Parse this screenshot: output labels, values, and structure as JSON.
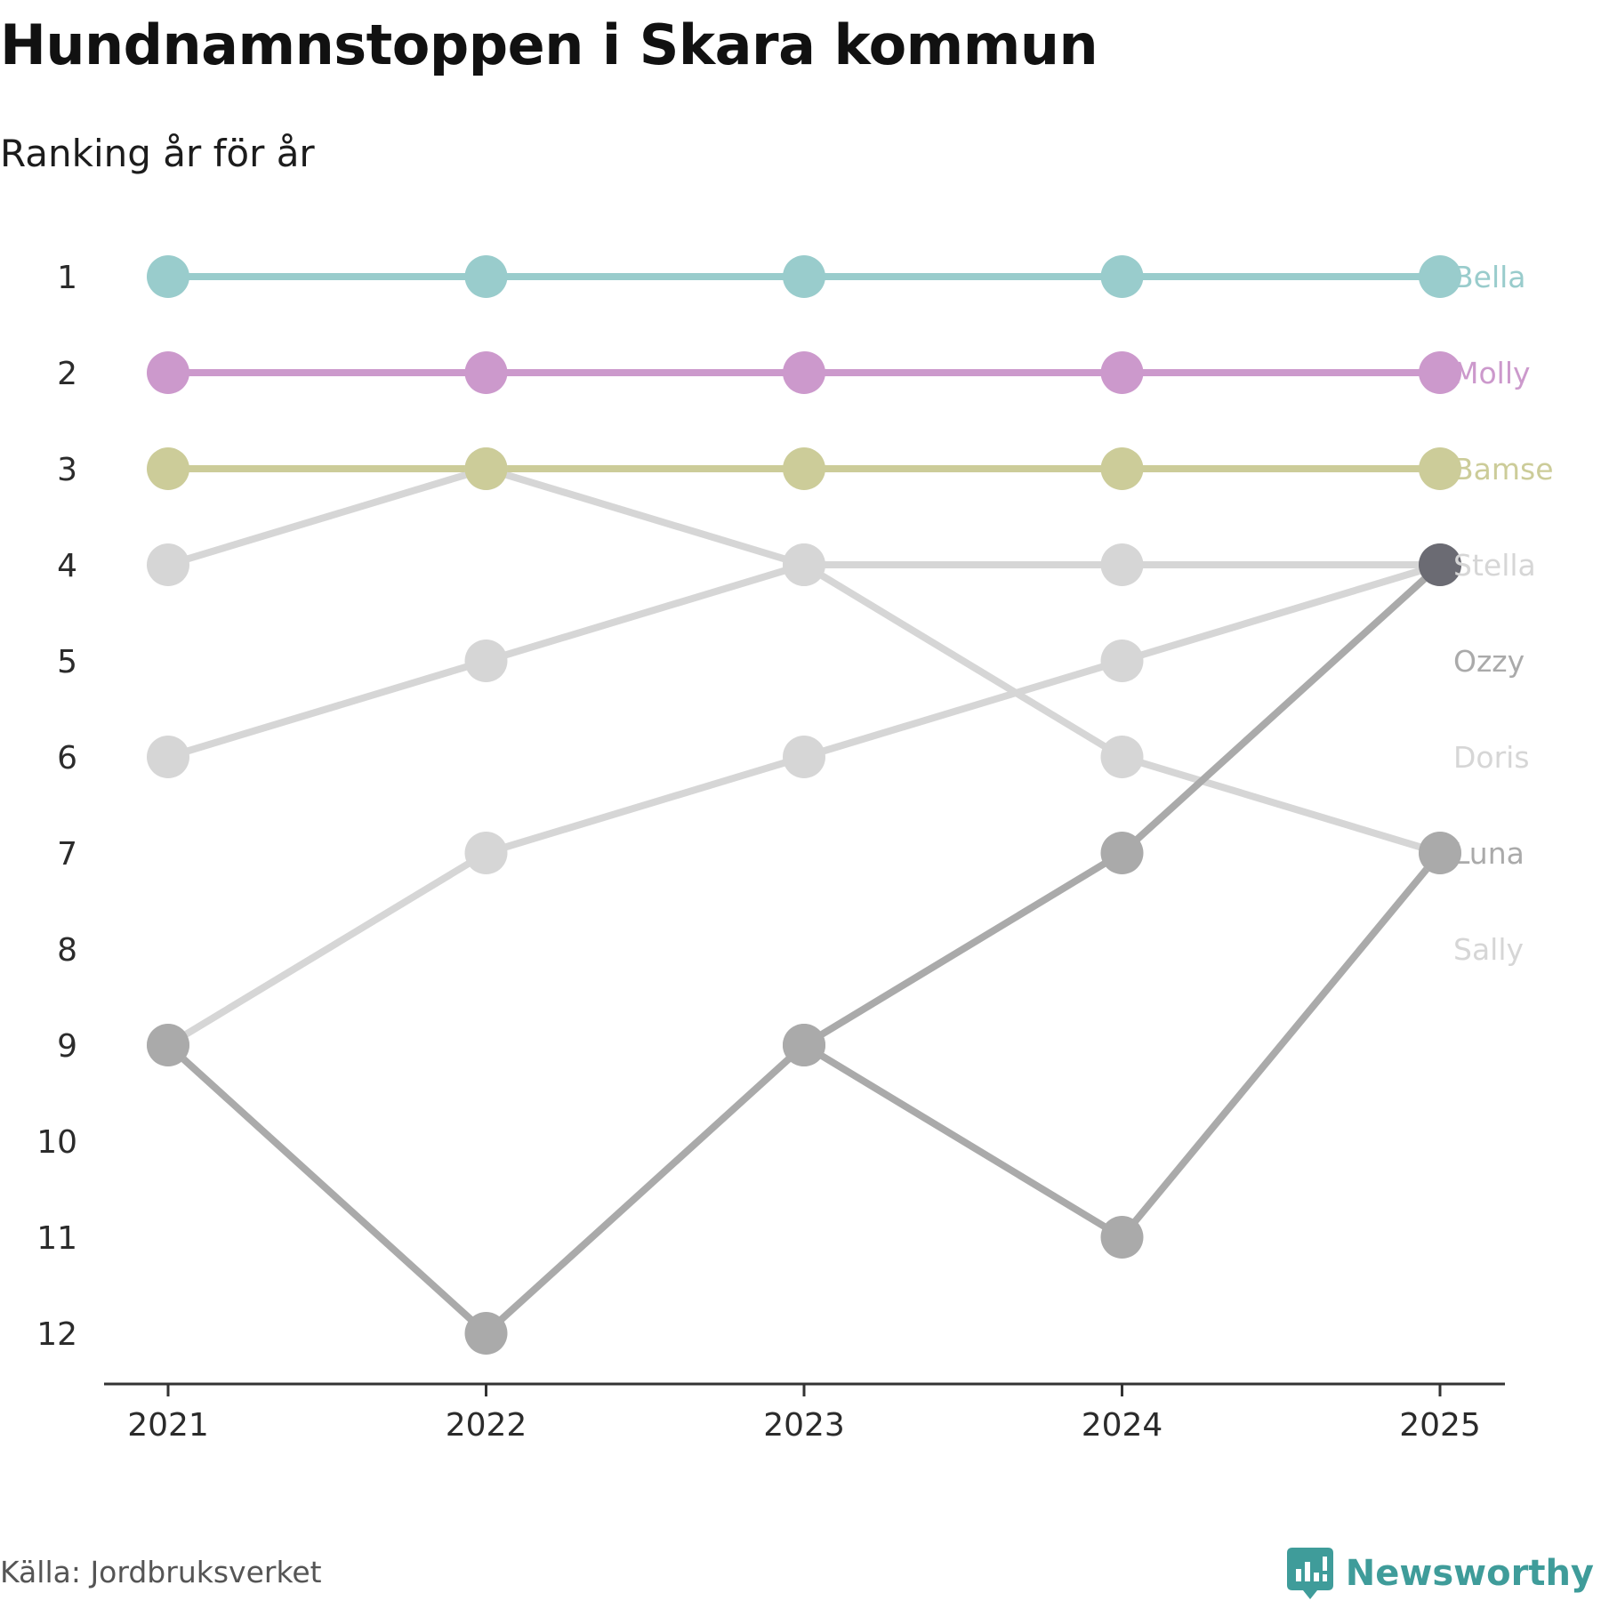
{
  "title": "Hundnamnstoppen i Skara kommun",
  "subtitle": "Ranking år för år",
  "source": "Källa: Jordbruksverket",
  "brand": {
    "name": "Newsworthy",
    "icon": "chart-bubble-icon",
    "color": "#3f9c9a"
  },
  "chart_data": {
    "type": "line",
    "title": "Hundnamnstoppen i Skara kommun",
    "subtitle": "Ranking år för år",
    "x": [
      2021,
      2022,
      2023,
      2024,
      2025
    ],
    "y_ticks": [
      1,
      2,
      3,
      4,
      5,
      6,
      7,
      8,
      9,
      10,
      11,
      12
    ],
    "ylim": [
      1,
      12
    ],
    "y_reversed": true,
    "xlabel": "",
    "ylabel": "",
    "series": [
      {
        "name": "Sally",
        "color": "#d6d6d6",
        "values": [
          9,
          7,
          6,
          5,
          4
        ]
      },
      {
        "name": "Doris",
        "color": "#d6d6d6",
        "values": [
          6,
          5,
          4,
          4,
          4
        ]
      },
      {
        "name": "Stella",
        "color": "#d6d6d6",
        "values": [
          4,
          3,
          4,
          6,
          7
        ]
      },
      {
        "name": "Luna",
        "color": "#aaaaaa",
        "values": [
          9,
          12,
          9,
          11,
          7
        ]
      },
      {
        "name": "Ozzy",
        "color": "#aaaaaa",
        "values": [
          null,
          null,
          9,
          7,
          4
        ]
      },
      {
        "name": "Bamse",
        "color": "#cccc99",
        "values": [
          3,
          3,
          3,
          3,
          3
        ]
      },
      {
        "name": "Molly",
        "color": "#cc99cc",
        "values": [
          2,
          2,
          2,
          2,
          2
        ]
      },
      {
        "name": "Bella",
        "color": "#99cccc",
        "values": [
          1,
          1,
          1,
          1,
          1
        ]
      }
    ],
    "end_labels": [
      {
        "name": "Bella",
        "rank": 1,
        "color": "#99cccc"
      },
      {
        "name": "Molly",
        "rank": 2,
        "color": "#cc99cc"
      },
      {
        "name": "Bamse",
        "rank": 3,
        "color": "#cccc99"
      },
      {
        "name": "Stella",
        "rank": 4,
        "color": "#d6d6d6"
      },
      {
        "name": "Ozzy",
        "rank": 5,
        "color": "#aaaaaa"
      },
      {
        "name": "Doris",
        "rank": 6,
        "color": "#d6d6d6"
      },
      {
        "name": "Luna",
        "rank": 7,
        "color": "#aaaaaa"
      },
      {
        "name": "Sally",
        "rank": 8,
        "color": "#d6d6d6"
      }
    ],
    "overlap_marker_color": "#6b6b73"
  }
}
